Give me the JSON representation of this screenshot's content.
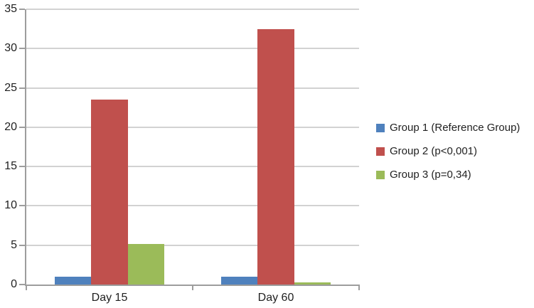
{
  "chart_data": {
    "type": "bar",
    "title": "",
    "xlabel": "",
    "ylabel": "",
    "categories": [
      "Day 15",
      "Day 60"
    ],
    "series": [
      {
        "name": "Group 1 (Reference Group)",
        "color": "#4F81BD",
        "values": [
          1,
          1
        ]
      },
      {
        "name": "Group 2 (p<0,001)",
        "color": "#C0504D",
        "values": [
          23.5,
          32.5
        ]
      },
      {
        "name": "Group 3 (p=0,34)",
        "color": "#9BBB59",
        "values": [
          5.2,
          0.3
        ]
      }
    ],
    "ylim": [
      0,
      35
    ],
    "ytick_step": 5,
    "grid": true,
    "legend_position": "right"
  },
  "style": {
    "background": "#FFFFFF",
    "gridline_color": "#A6A6A6",
    "axis_color": "#9D9D9D",
    "text_color": "#1F1F1F"
  }
}
